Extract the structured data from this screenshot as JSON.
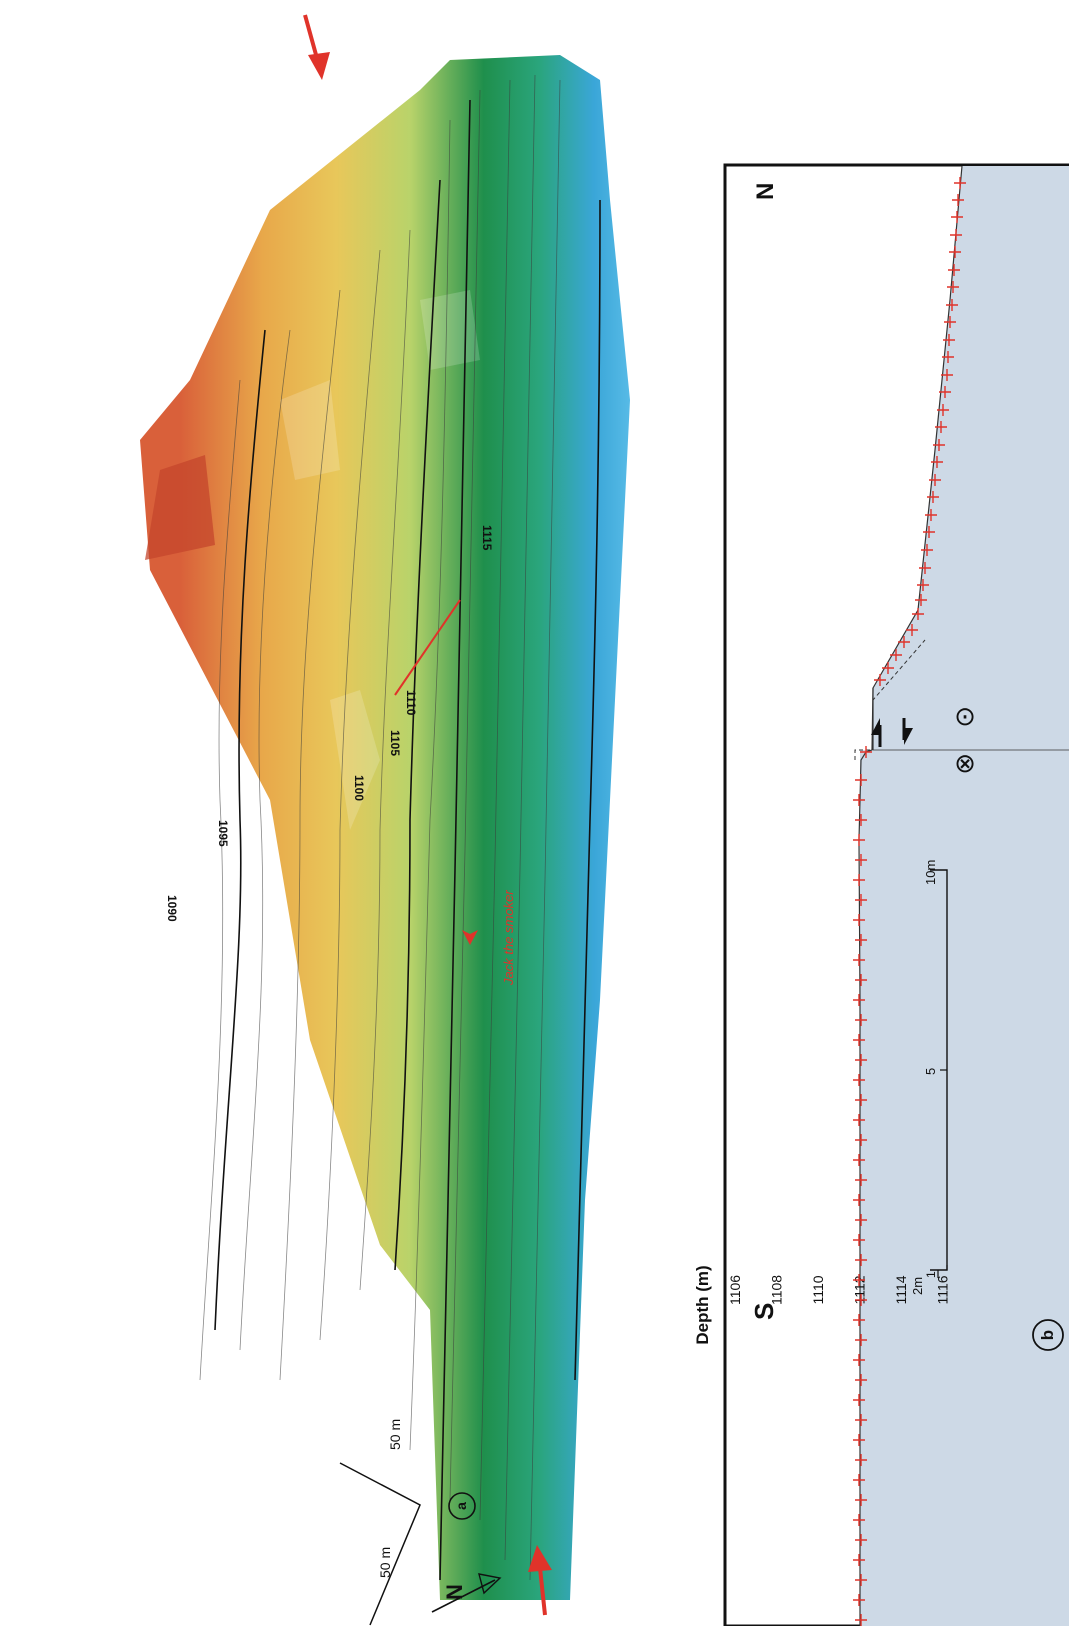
{
  "map_panel": {
    "panel_label": "a",
    "scale_bar_label_1": "50 m",
    "scale_bar_label_2": "50 m",
    "north_label": "N",
    "contour_labels": [
      "1090",
      "1095",
      "1100",
      "1105",
      "1110",
      "1115"
    ],
    "vent_label": "Jack the smoker",
    "colors": {
      "shallow": "#d9603a",
      "mid_shallow": "#e8c75a",
      "mid": "#b9d36a",
      "mid_deep": "#1f8f4c",
      "deep": "#3aa6d8",
      "arrow": "#e0332a",
      "profile_line": "#e0332a"
    }
  },
  "profile_panel": {
    "panel_label": "b",
    "axis_title": "Depth (m)",
    "depth_ticks": [
      "1106",
      "1108",
      "1110",
      "1112",
      "1114",
      "1116"
    ],
    "south_label": "S",
    "north_label": "N",
    "scale_labels": [
      "2m",
      "1",
      "5",
      "10m"
    ],
    "into_page_symbol": "⊗",
    "out_of_page_symbol": "⊙",
    "colors": {
      "fill": "#cdd9e6",
      "marker": "#e0332a",
      "profile": "#333333"
    }
  }
}
